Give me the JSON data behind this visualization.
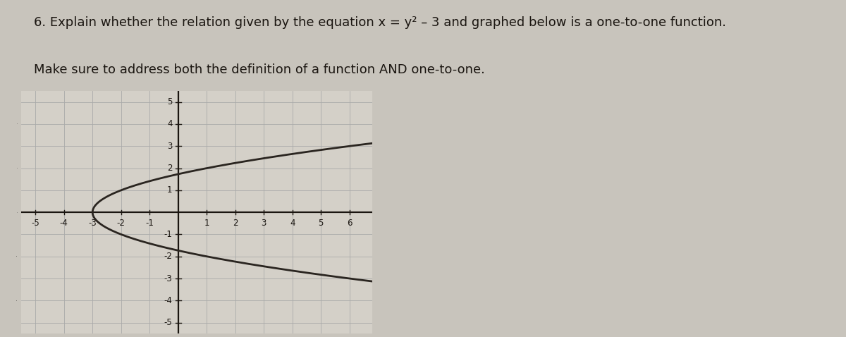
{
  "xlim": [
    -5.5,
    6.8
  ],
  "ylim": [
    -5.5,
    5.5
  ],
  "xticks": [
    -5,
    -4,
    -3,
    -2,
    -1,
    1,
    2,
    3,
    4,
    5,
    6
  ],
  "yticks": [
    -5,
    -4,
    -3,
    -2,
    -1,
    1,
    2,
    3,
    4,
    5
  ],
  "curve_color": "#2a2520",
  "curve_linewidth": 2.0,
  "grid_color": "#aaaaaa",
  "grid_linewidth": 0.6,
  "background_color": "#c8c4bc",
  "graph_bg_color": "#d4d0c8",
  "axes_color": "#1a1510",
  "text_color": "#1a1510",
  "title_fontsize": 13.0,
  "tick_fontsize": 8.5,
  "y_range": [
    -3.2,
    3.2
  ],
  "fig_width": 12.0,
  "fig_height": 4.78,
  "line1_normal": "6. Explain whether the relation given by the equation ",
  "line1_eq": "x",
  "line1_eq2": " = y² – 3",
  "line1_end": " and graphed below is a one-to-one function.",
  "line2": "Make sure to address both the definition of a function AND one-to-one."
}
